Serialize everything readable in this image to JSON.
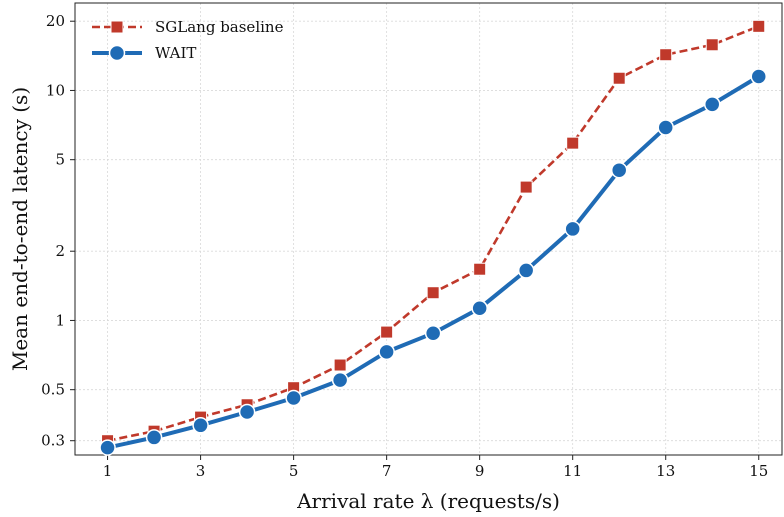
{
  "chart_data": {
    "type": "line",
    "title": "",
    "xlabel": "Arrival rate λ (requests/s)",
    "ylabel": "Mean end-to-end latency (s)",
    "x": [
      1,
      2,
      3,
      4,
      5,
      6,
      7,
      8,
      9,
      10,
      11,
      12,
      13,
      14,
      15
    ],
    "xlim": [
      0.3,
      15.5
    ],
    "ylim": [
      0.26,
      24
    ],
    "yscale": "log",
    "xticks": [
      1,
      3,
      5,
      7,
      9,
      11,
      13,
      15
    ],
    "xtick_labels": [
      "1",
      "3",
      "5",
      "7",
      "9",
      "11",
      "13",
      "15"
    ],
    "yticks": [
      0.3,
      0.5,
      1,
      2,
      5,
      10,
      20
    ],
    "ytick_labels": [
      "0.3",
      "0.5",
      "1",
      "2",
      "5",
      "10",
      "20"
    ],
    "grid": true,
    "legend_position": "top-left",
    "series": [
      {
        "name": "SGLang baseline",
        "color": "#c0392b",
        "marker": "square",
        "linestyle": "dashed",
        "values": [
          0.3,
          0.33,
          0.38,
          0.43,
          0.51,
          0.64,
          0.89,
          1.32,
          1.67,
          3.8,
          5.9,
          11.3,
          14.3,
          15.8,
          19.0
        ]
      },
      {
        "name": "WAIT",
        "color": "#1f6bb5",
        "marker": "circle",
        "linestyle": "solid",
        "values": [
          0.28,
          0.31,
          0.35,
          0.4,
          0.46,
          0.55,
          0.73,
          0.88,
          1.13,
          1.65,
          2.5,
          4.5,
          6.9,
          8.7,
          11.5
        ]
      }
    ]
  }
}
